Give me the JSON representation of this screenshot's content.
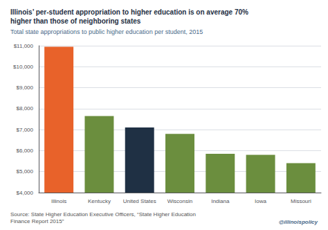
{
  "chart_data": {
    "type": "bar",
    "title": "Illinois’ per-student appropriation to higher education is on average 70%\nhigher than those of neighboring states",
    "subtitle": "Total state appropriations to public higher education per student, 2015",
    "categories": [
      "Illinois",
      "Kentucky",
      "United States",
      "Wisconsin",
      "Indiana",
      "Iowa",
      "Missouri"
    ],
    "values": [
      10950,
      7650,
      7100,
      6800,
      5850,
      5800,
      5400
    ],
    "colors": [
      "#E8622A",
      "#6B8E3E",
      "#1F3044",
      "#6B8E3E",
      "#6B8E3E",
      "#6B8E3E",
      "#6B8E3E"
    ],
    "ylim": [
      4000,
      11000
    ],
    "yticks": [
      {
        "value": 4000,
        "label": "$4,000"
      },
      {
        "value": 5000,
        "label": "$5,000"
      },
      {
        "value": 6000,
        "label": "$6,000"
      },
      {
        "value": 7000,
        "label": "$7,000"
      },
      {
        "value": 8000,
        "label": "$8,000"
      },
      {
        "value": 9000,
        "label": "$9,000"
      },
      {
        "value": 10000,
        "label": "$10,000"
      },
      {
        "value": 11000,
        "label": "$11,000"
      }
    ],
    "grid": true,
    "annotations": [
      "Source: State Higher Education Executive Officers, “State Higher Education\nFinance Report 2015”",
      "@illinoispolicy"
    ]
  }
}
